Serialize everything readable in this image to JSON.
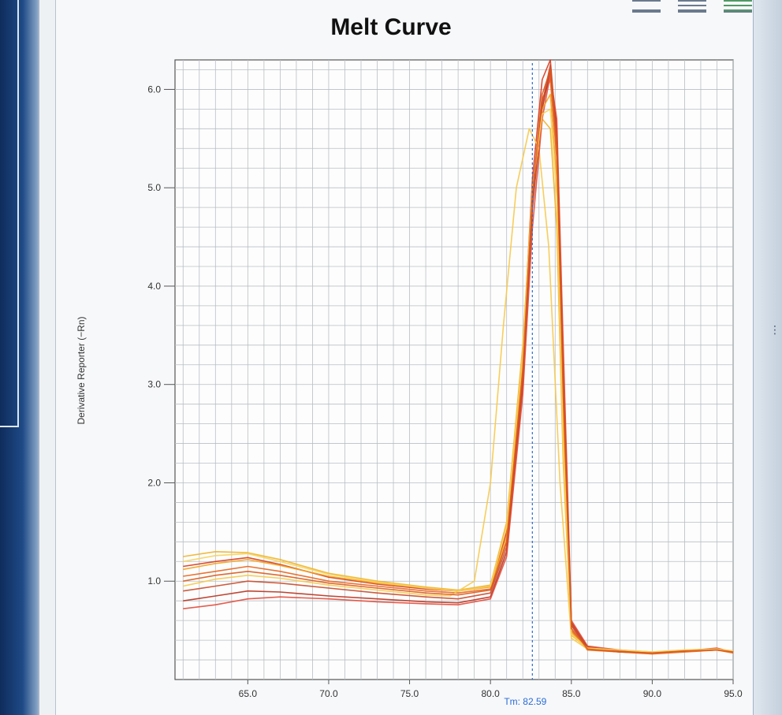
{
  "window": {
    "side_dots": "⋮"
  },
  "chart_data": {
    "type": "line",
    "title": "Melt Curve",
    "ylabel": "Derivative Reporter (−Rn)",
    "xlabel": "",
    "xlim": [
      60.5,
      95.0
    ],
    "ylim": [
      0.0,
      6.3
    ],
    "x_ticks": [
      {
        "value": 65.0,
        "label": "65.0"
      },
      {
        "value": 70.0,
        "label": "70.0"
      },
      {
        "value": 75.0,
        "label": "75.0"
      },
      {
        "value": 80.0,
        "label": "80.0"
      },
      {
        "value": 85.0,
        "label": "85.0"
      },
      {
        "value": 90.0,
        "label": "90.0"
      },
      {
        "value": 95.0,
        "label": "95.0"
      }
    ],
    "y_ticks": [
      {
        "value": 1.0,
        "label": "1.0"
      },
      {
        "value": 2.0,
        "label": "2.0"
      },
      {
        "value": 3.0,
        "label": "3.0"
      },
      {
        "value": 4.0,
        "label": "4.0"
      },
      {
        "value": 5.0,
        "label": "5.0"
      },
      {
        "value": 6.0,
        "label": "6.0"
      }
    ],
    "grid": true,
    "tm_line": {
      "x": 82.59,
      "label": "Tm: 82.59",
      "color": "#2a6cd6"
    },
    "series": [
      {
        "color": "#d63a1e",
        "x": [
          61,
          63,
          65,
          67,
          70,
          73,
          76,
          78,
          80,
          81,
          82,
          82.6,
          83.2,
          83.7,
          84.1,
          84.5,
          85,
          86,
          88,
          90,
          92,
          94,
          95
        ],
        "y": [
          1.15,
          1.2,
          1.24,
          1.17,
          1.04,
          0.97,
          0.92,
          0.9,
          0.95,
          1.5,
          3.3,
          5.1,
          6.1,
          6.3,
          5.5,
          3.0,
          0.55,
          0.31,
          0.28,
          0.27,
          0.29,
          0.3,
          0.28
        ]
      },
      {
        "color": "#e8641c",
        "x": [
          61,
          63,
          65,
          67,
          70,
          73,
          76,
          78,
          80,
          81,
          82,
          82.6,
          83.2,
          83.7,
          84.1,
          84.5,
          85,
          86,
          88,
          90,
          92,
          94,
          95
        ],
        "y": [
          1.05,
          1.1,
          1.15,
          1.1,
          1.0,
          0.95,
          0.9,
          0.88,
          0.92,
          1.4,
          3.1,
          4.9,
          5.9,
          6.1,
          5.3,
          2.8,
          0.5,
          0.3,
          0.28,
          0.26,
          0.28,
          0.3,
          0.27
        ]
      },
      {
        "color": "#f0b22a",
        "x": [
          61,
          63,
          65,
          67,
          70,
          73,
          76,
          78,
          80,
          81,
          82,
          82.6,
          83.2,
          83.7,
          84.1,
          84.5,
          85,
          86,
          88,
          90,
          92,
          94,
          95
        ],
        "y": [
          1.25,
          1.3,
          1.29,
          1.22,
          1.08,
          1.0,
          0.94,
          0.91,
          0.96,
          1.6,
          3.4,
          5.0,
          5.7,
          5.6,
          4.6,
          2.2,
          0.45,
          0.32,
          0.3,
          0.28,
          0.3,
          0.31,
          0.29
        ]
      },
      {
        "color": "#b8321e",
        "x": [
          61,
          63,
          65,
          67,
          70,
          73,
          76,
          78,
          80,
          81,
          82,
          82.6,
          83.2,
          83.7,
          84.1,
          84.5,
          85,
          86,
          88,
          90,
          92,
          94,
          95
        ],
        "y": [
          0.8,
          0.85,
          0.9,
          0.89,
          0.85,
          0.82,
          0.79,
          0.78,
          0.84,
          1.3,
          3.0,
          4.8,
          5.8,
          6.2,
          5.6,
          3.2,
          0.58,
          0.33,
          0.29,
          0.27,
          0.29,
          0.31,
          0.28
        ]
      },
      {
        "color": "#f6c94a",
        "x": [
          61,
          63,
          65,
          67,
          70,
          73,
          76,
          77.5,
          79,
          80,
          80.8,
          81.6,
          82.4,
          83,
          83.6,
          84.3,
          85,
          86,
          88,
          90,
          92,
          94,
          95
        ],
        "y": [
          0.95,
          1.02,
          1.06,
          1.03,
          0.96,
          0.91,
          0.86,
          0.85,
          1.0,
          2.0,
          3.6,
          5.0,
          5.6,
          5.4,
          4.4,
          2.0,
          0.42,
          0.31,
          0.29,
          0.27,
          0.29,
          0.31,
          0.28
        ]
      },
      {
        "color": "#e24a3a",
        "x": [
          61,
          63,
          65,
          67,
          70,
          73,
          76,
          78,
          80,
          81,
          82,
          82.6,
          83.2,
          83.7,
          84.1,
          84.5,
          85,
          86,
          88,
          90,
          92,
          94,
          95
        ],
        "y": [
          0.72,
          0.76,
          0.82,
          0.84,
          0.82,
          0.79,
          0.77,
          0.76,
          0.82,
          1.25,
          2.9,
          4.6,
          5.7,
          6.15,
          5.7,
          3.4,
          0.6,
          0.34,
          0.3,
          0.27,
          0.29,
          0.32,
          0.28
        ]
      },
      {
        "color": "#f3a21c",
        "x": [
          61,
          63,
          65,
          67,
          70,
          73,
          76,
          78,
          80,
          81,
          82,
          82.6,
          83.2,
          83.7,
          84.1,
          84.5,
          85,
          86,
          88,
          90,
          92,
          94,
          95
        ],
        "y": [
          1.12,
          1.18,
          1.22,
          1.16,
          1.05,
          0.98,
          0.93,
          0.9,
          0.94,
          1.45,
          3.2,
          4.9,
          5.8,
          5.95,
          5.1,
          2.6,
          0.48,
          0.31,
          0.29,
          0.27,
          0.29,
          0.3,
          0.28
        ]
      },
      {
        "color": "#c94a2a",
        "x": [
          61,
          63,
          65,
          67,
          70,
          73,
          76,
          78,
          80,
          81,
          82,
          82.6,
          83.2,
          83.7,
          84.1,
          84.5,
          85,
          86,
          88,
          90,
          92,
          94,
          95
        ],
        "y": [
          0.9,
          0.95,
          1.0,
          0.98,
          0.93,
          0.88,
          0.84,
          0.82,
          0.88,
          1.35,
          3.05,
          4.85,
          5.85,
          6.25,
          5.5,
          3.1,
          0.56,
          0.33,
          0.29,
          0.27,
          0.29,
          0.31,
          0.28
        ]
      },
      {
        "color": "#f7d35a",
        "x": [
          61,
          63,
          65,
          67,
          70,
          73,
          76,
          78,
          80,
          81,
          82,
          82.6,
          83.2,
          83.7,
          84.1,
          84.5,
          85,
          86,
          88,
          90,
          92,
          94,
          95
        ],
        "y": [
          1.2,
          1.26,
          1.28,
          1.2,
          1.07,
          0.99,
          0.93,
          0.9,
          0.95,
          1.55,
          3.3,
          5.0,
          5.75,
          5.8,
          4.9,
          2.4,
          0.46,
          0.32,
          0.3,
          0.28,
          0.3,
          0.31,
          0.29
        ]
      },
      {
        "color": "#dc5a1a",
        "x": [
          61,
          63,
          65,
          67,
          70,
          73,
          76,
          78,
          80,
          81,
          82,
          82.6,
          83.2,
          83.7,
          84.1,
          84.5,
          85,
          86,
          88,
          90,
          92,
          94,
          95
        ],
        "y": [
          1.0,
          1.06,
          1.1,
          1.06,
          0.98,
          0.93,
          0.88,
          0.86,
          0.91,
          1.4,
          3.15,
          4.95,
          5.95,
          6.2,
          5.4,
          2.9,
          0.52,
          0.31,
          0.28,
          0.27,
          0.29,
          0.3,
          0.28
        ]
      }
    ]
  }
}
